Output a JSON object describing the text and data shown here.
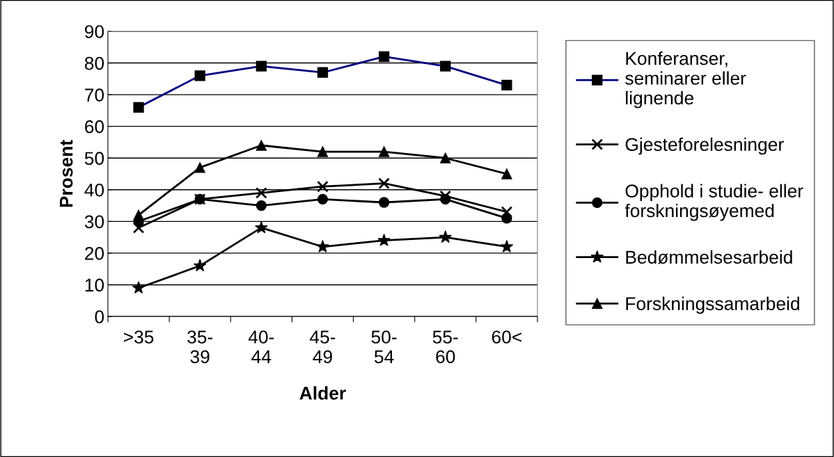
{
  "chart_data": {
    "type": "line",
    "xlabel": "Alder",
    "ylabel": "Prosent",
    "categories": [
      ">35",
      "35-\n39",
      "40-\n44",
      "45-\n49",
      "50-\n54",
      "55-\n60",
      "60<"
    ],
    "series": [
      {
        "name": "Konferanser,\nseminarer eller\nlignende",
        "color": "#000080",
        "marker": "square",
        "values": [
          66,
          76,
          79,
          77,
          82,
          79,
          73
        ]
      },
      {
        "name": "Gjesteforelesninger",
        "color": "#000000",
        "marker": "cross",
        "values": [
          28,
          37,
          39,
          41,
          42,
          38,
          33
        ]
      },
      {
        "name": "Opphold i studie- eller\nforskningsøyemed",
        "color": "#000000",
        "marker": "circle",
        "values": [
          30,
          37,
          35,
          37,
          36,
          37,
          31
        ]
      },
      {
        "name": "Bedømmelsesarbeid",
        "color": "#000000",
        "marker": "star",
        "values": [
          9,
          16,
          28,
          22,
          24,
          25,
          22
        ]
      },
      {
        "name": "Forskningssamarbeid",
        "color": "#000000",
        "marker": "triangle",
        "values": [
          32,
          47,
          54,
          52,
          52,
          50,
          45
        ]
      }
    ],
    "ylim": [
      0,
      90
    ],
    "yticks": [
      0,
      10,
      20,
      30,
      40,
      50,
      60,
      70,
      80,
      90
    ],
    "grid": "y",
    "legend": "right",
    "line_style": "solid"
  }
}
